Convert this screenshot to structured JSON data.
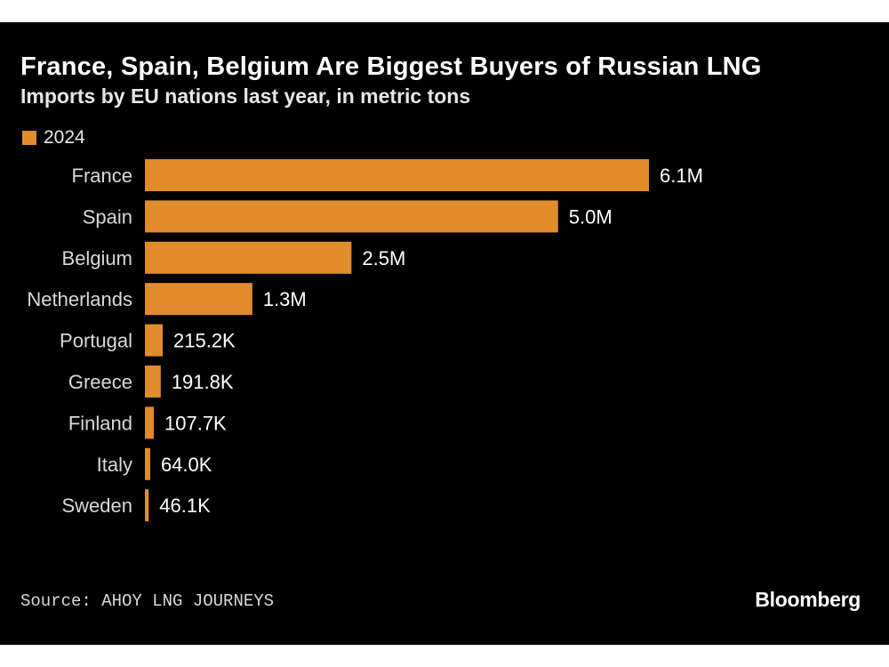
{
  "title": "France, Spain, Belgium Are Biggest Buyers of Russian LNG",
  "subtitle": "Imports by EU nations last year, in metric tons",
  "legend": {
    "label": "2024"
  },
  "source": "Source: AHOY LNG JOURNEYS",
  "brand": "Bloomberg",
  "colors": {
    "bar": "#e08c2b",
    "background": "#000000",
    "text": "#ffffff"
  },
  "chart_data": {
    "type": "bar",
    "orientation": "horizontal",
    "categories": [
      "France",
      "Spain",
      "Belgium",
      "Netherlands",
      "Portugal",
      "Greece",
      "Finland",
      "Italy",
      "Sweden"
    ],
    "series": [
      {
        "name": "2024",
        "values": [
          6100000,
          5000000,
          2500000,
          1300000,
          215200,
          191800,
          107700,
          64000,
          46100
        ],
        "labels": [
          "6.1M",
          "5.0M",
          "2.5M",
          "1.3M",
          "215.2K",
          "191.8K",
          "107.7K",
          "64.0K",
          "46.1K"
        ]
      }
    ],
    "xlim": [
      0,
      6100000
    ],
    "grid": false,
    "legend": "top-left"
  }
}
